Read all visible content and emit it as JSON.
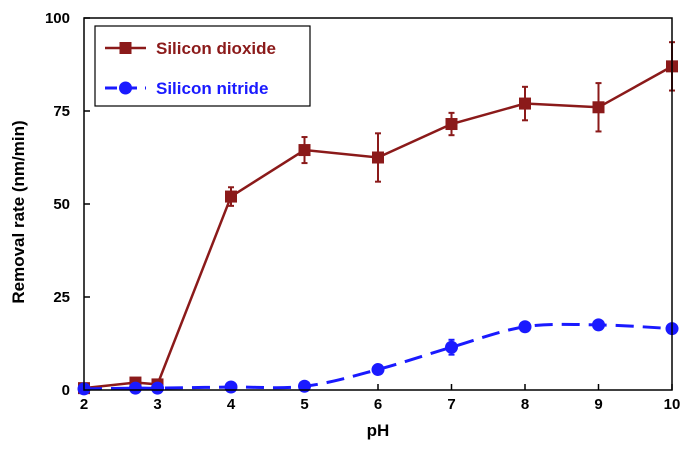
{
  "chart_data": {
    "type": "line",
    "xlabel": "pH",
    "ylabel": "Removal rate (nm/min)",
    "xlim": [
      2,
      10
    ],
    "ylim": [
      0,
      100
    ],
    "xticks": [
      2,
      3,
      4,
      5,
      6,
      7,
      8,
      9,
      10
    ],
    "yticks": [
      0,
      25,
      50,
      75,
      100
    ],
    "grid": false,
    "legend_position": "top-left",
    "series": [
      {
        "name": "Silicon dioxide",
        "color": "#8b1a1a",
        "line_style": "solid",
        "marker": "square",
        "x": [
          2,
          2.7,
          3,
          4,
          5,
          6,
          7,
          8,
          9,
          10
        ],
        "y": [
          0.5,
          2,
          1.5,
          52,
          64.5,
          62.5,
          71.5,
          77,
          76,
          87
        ],
        "err": [
          0.3,
          0.5,
          0.5,
          2.5,
          3.5,
          6.5,
          3,
          4.5,
          6.5,
          6.5
        ]
      },
      {
        "name": "Silicon nitride",
        "color": "#1a1aff",
        "line_style": "dashed",
        "marker": "circle",
        "x": [
          2,
          2.7,
          3,
          4,
          5,
          6,
          7,
          8,
          9,
          10
        ],
        "y": [
          0.3,
          0.5,
          0.5,
          0.8,
          1,
          5.5,
          11.5,
          17,
          17.5,
          16.5
        ],
        "err": [
          0,
          0,
          0,
          0,
          0,
          0.8,
          2,
          0.8,
          0.5,
          0.5
        ]
      }
    ]
  }
}
